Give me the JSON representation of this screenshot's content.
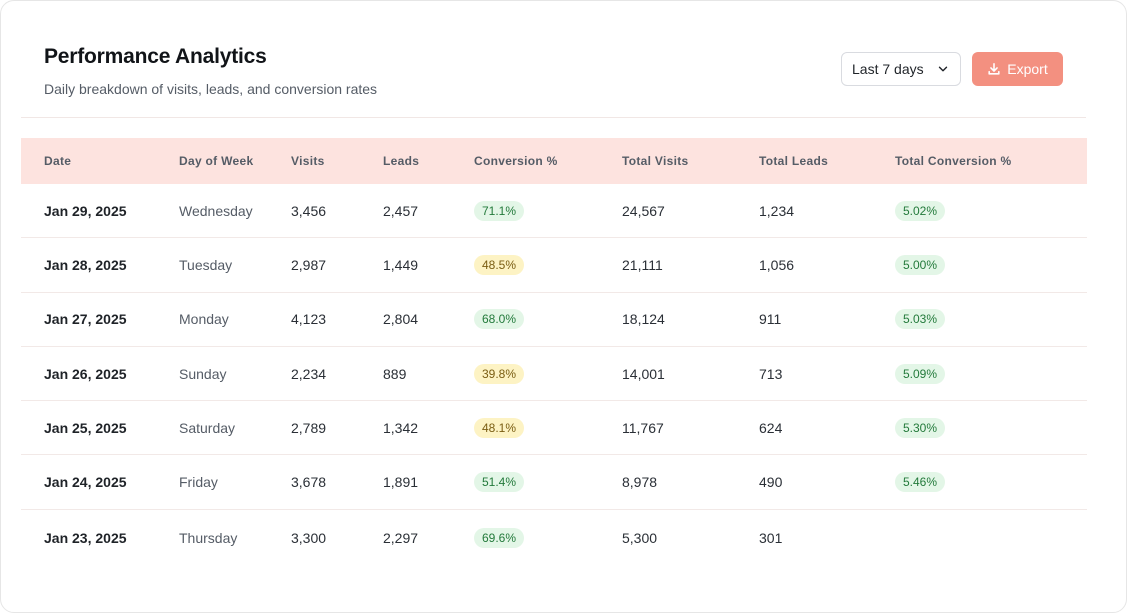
{
  "header": {
    "title": "Performance Analytics",
    "subtitle": "Daily breakdown of visits, leads, and conversion rates"
  },
  "controls": {
    "range_select": "Last 7 days",
    "export_label": "Export"
  },
  "colors": {
    "accent": "#f39080",
    "header_bg": "#fde3df",
    "pill_green_bg": "#e3f6e7",
    "pill_yellow_bg": "#fdf3c4"
  },
  "table": {
    "columns": [
      "Date",
      "Day of Week",
      "Visits",
      "Leads",
      "Conversion %",
      "Total Visits",
      "Total Leads",
      "Total Conversion %"
    ],
    "rows": [
      {
        "date": "Jan 29, 2025",
        "day": "Wednesday",
        "visits": "3,456",
        "leads": "2,457",
        "conversion": "71.1%",
        "conversion_level": "green",
        "total_visits": "24,567",
        "total_leads": "1,234",
        "total_conversion": "5.02%"
      },
      {
        "date": "Jan 28, 2025",
        "day": "Tuesday",
        "visits": "2,987",
        "leads": "1,449",
        "conversion": "48.5%",
        "conversion_level": "yellow",
        "total_visits": "21,111",
        "total_leads": "1,056",
        "total_conversion": "5.00%"
      },
      {
        "date": "Jan 27, 2025",
        "day": "Monday",
        "visits": "4,123",
        "leads": "2,804",
        "conversion": "68.0%",
        "conversion_level": "green",
        "total_visits": "18,124",
        "total_leads": "911",
        "total_conversion": "5.03%"
      },
      {
        "date": "Jan 26, 2025",
        "day": "Sunday",
        "visits": "2,234",
        "leads": "889",
        "conversion": "39.8%",
        "conversion_level": "yellow",
        "total_visits": "14,001",
        "total_leads": "713",
        "total_conversion": "5.09%"
      },
      {
        "date": "Jan 25, 2025",
        "day": "Saturday",
        "visits": "2,789",
        "leads": "1,342",
        "conversion": "48.1%",
        "conversion_level": "yellow",
        "total_visits": "11,767",
        "total_leads": "624",
        "total_conversion": "5.30%"
      },
      {
        "date": "Jan 24, 2025",
        "day": "Friday",
        "visits": "3,678",
        "leads": "1,891",
        "conversion": "51.4%",
        "conversion_level": "green",
        "total_visits": "8,978",
        "total_leads": "490",
        "total_conversion": "5.46%"
      },
      {
        "date": "Jan 23, 2025",
        "day": "Thursday",
        "visits": "3,300",
        "leads": "2,297",
        "conversion": "69.6%",
        "conversion_level": "green",
        "total_visits": "5,300",
        "total_leads": "301",
        "total_conversion": ""
      }
    ]
  }
}
